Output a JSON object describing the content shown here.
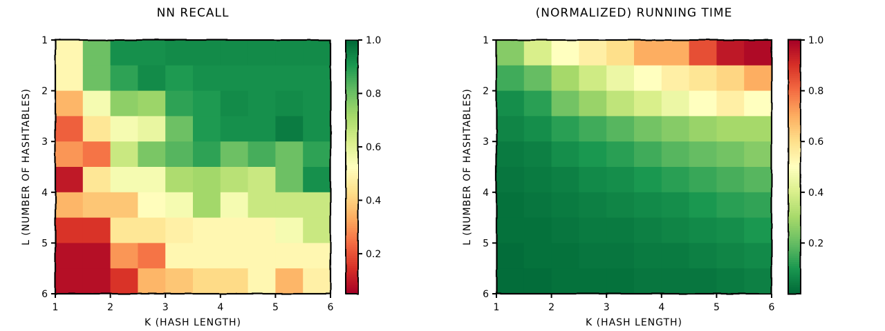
{
  "figure": {
    "background": "#ffffff",
    "style": "xkcd"
  },
  "chart_data": [
    {
      "type": "heatmap",
      "title": "NN RECALL",
      "xlabel": "K (HASH LENGTH)",
      "ylabel": "L (NUMBER OF HASHTABLES)",
      "x_tick_labels": [
        "1",
        "2",
        "3",
        "4",
        "5",
        "6"
      ],
      "y_tick_labels": [
        "1",
        "2",
        "3",
        "4",
        "5",
        "6"
      ],
      "xlim": [
        1,
        6
      ],
      "ylim": [
        6,
        1
      ],
      "colormap": "RdYlGn",
      "colorbar": {
        "range": [
          0.05,
          1.0
        ],
        "ticks": [
          0.2,
          0.4,
          0.6,
          0.8,
          1.0
        ],
        "tick_labels": [
          "0.2",
          "0.4",
          "0.6",
          "0.8",
          "1.0"
        ]
      },
      "grid_rows": 10,
      "grid_cols": 10,
      "values": [
        [
          0.5,
          0.8,
          0.92,
          0.92,
          0.93,
          0.93,
          0.93,
          0.93,
          0.93,
          0.93
        ],
        [
          0.5,
          0.8,
          0.88,
          0.93,
          0.9,
          0.92,
          0.92,
          0.92,
          0.92,
          0.92
        ],
        [
          0.35,
          0.55,
          0.75,
          0.73,
          0.88,
          0.9,
          0.93,
          0.92,
          0.93,
          0.92
        ],
        [
          0.22,
          0.45,
          0.55,
          0.58,
          0.8,
          0.9,
          0.92,
          0.92,
          0.96,
          0.92
        ],
        [
          0.3,
          0.25,
          0.65,
          0.78,
          0.83,
          0.88,
          0.8,
          0.85,
          0.8,
          0.88
        ],
        [
          0.1,
          0.45,
          0.55,
          0.55,
          0.7,
          0.72,
          0.68,
          0.65,
          0.8,
          0.92
        ],
        [
          0.35,
          0.38,
          0.38,
          0.52,
          0.55,
          0.72,
          0.55,
          0.65,
          0.65,
          0.65
        ],
        [
          0.15,
          0.15,
          0.45,
          0.45,
          0.48,
          0.5,
          0.5,
          0.5,
          0.55,
          0.65
        ],
        [
          0.08,
          0.08,
          0.3,
          0.25,
          0.5,
          0.5,
          0.5,
          0.5,
          0.5,
          0.5
        ],
        [
          0.08,
          0.08,
          0.15,
          0.35,
          0.38,
          0.42,
          0.42,
          0.5,
          0.35,
          0.48
        ]
      ]
    },
    {
      "type": "heatmap",
      "title": "(NORMALIZED) RUNNING TIME",
      "xlabel": "K (HASH LENGTH)",
      "ylabel": "L (NUMBER OF HASHTABLES)",
      "x_tick_labels": [
        "1",
        "2",
        "3",
        "4",
        "5",
        "6"
      ],
      "y_tick_labels": [
        "1",
        "2",
        "3",
        "4",
        "5",
        "6"
      ],
      "xlim": [
        1,
        6
      ],
      "ylim": [
        6,
        1
      ],
      "colormap": "RdYlGn_r",
      "colorbar": {
        "range": [
          0.0,
          1.0
        ],
        "ticks": [
          0.2,
          0.4,
          0.6,
          0.8,
          1.0
        ],
        "tick_labels": [
          "0.2",
          "0.4",
          "0.6",
          "0.8",
          "1.0"
        ]
      },
      "grid_rows": 10,
      "grid_cols": 10,
      "values": [
        [
          0.25,
          0.4,
          0.5,
          0.55,
          0.6,
          0.7,
          0.7,
          0.85,
          0.95,
          0.98
        ],
        [
          0.15,
          0.2,
          0.3,
          0.38,
          0.45,
          0.5,
          0.55,
          0.58,
          0.62,
          0.7
        ],
        [
          0.08,
          0.12,
          0.22,
          0.28,
          0.35,
          0.4,
          0.45,
          0.5,
          0.55,
          0.5
        ],
        [
          0.06,
          0.08,
          0.12,
          0.15,
          0.18,
          0.22,
          0.25,
          0.28,
          0.3,
          0.3
        ],
        [
          0.04,
          0.05,
          0.08,
          0.1,
          0.12,
          0.15,
          0.18,
          0.2,
          0.22,
          0.25
        ],
        [
          0.03,
          0.04,
          0.05,
          0.07,
          0.08,
          0.1,
          0.12,
          0.14,
          0.16,
          0.18
        ],
        [
          0.02,
          0.03,
          0.04,
          0.05,
          0.06,
          0.07,
          0.08,
          0.1,
          0.12,
          0.13
        ],
        [
          0.02,
          0.02,
          0.03,
          0.04,
          0.04,
          0.05,
          0.06,
          0.07,
          0.08,
          0.1
        ],
        [
          0.01,
          0.02,
          0.02,
          0.03,
          0.03,
          0.04,
          0.04,
          0.05,
          0.06,
          0.07
        ],
        [
          0.01,
          0.01,
          0.02,
          0.02,
          0.02,
          0.03,
          0.03,
          0.03,
          0.04,
          0.05
        ]
      ]
    }
  ]
}
